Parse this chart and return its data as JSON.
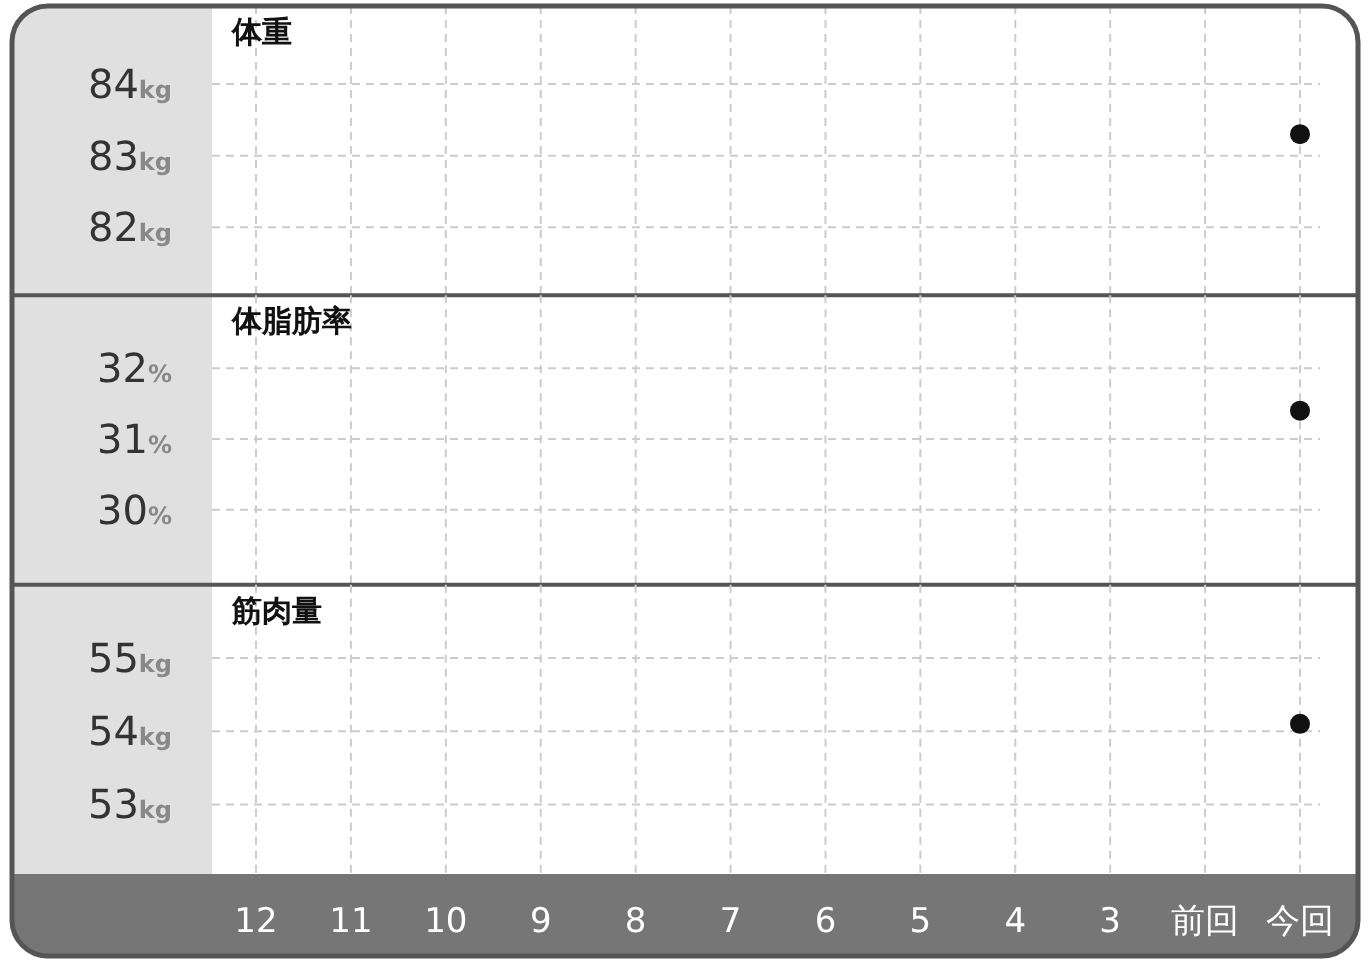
{
  "chart_data": [
    {
      "type": "scatter",
      "title": "体重",
      "categories": [
        null,
        null,
        null,
        null,
        null,
        null,
        null,
        null,
        null,
        null,
        null,
        null
      ],
      "values": [
        null,
        null,
        null,
        null,
        null,
        null,
        null,
        null,
        null,
        null,
        null,
        83.3
      ],
      "color": "#111111",
      "marker": "circle",
      "ylim": [
        81.05,
        85.09
      ],
      "yticks": [
        {
          "value": 82,
          "label": "82kg"
        },
        {
          "value": 83,
          "label": "83kg"
        },
        {
          "value": 84,
          "label": "84kg"
        }
      ],
      "grid": true,
      "tick_labels": "y"
    },
    {
      "type": "scatter",
      "title": "体脂肪率",
      "categories": [
        null,
        null,
        null,
        null,
        null,
        null,
        null,
        null,
        null,
        null,
        null,
        null
      ],
      "values": [
        null,
        null,
        null,
        null,
        null,
        null,
        null,
        null,
        null,
        null,
        null,
        31.4
      ],
      "color": "#111111",
      "marker": "circle",
      "ylim": [
        28.94,
        33.03
      ],
      "yticks": [
        {
          "value": 30,
          "label": "30%"
        },
        {
          "value": 31,
          "label": "31%"
        },
        {
          "value": 32,
          "label": "32%"
        }
      ],
      "grid": true,
      "tick_labels": "y"
    },
    {
      "type": "scatter",
      "title": "筋肉量",
      "categories": [
        "12",
        "11",
        "10",
        "9",
        "8",
        "7",
        "6",
        "5",
        "4",
        "3",
        "前回",
        "今回"
      ],
      "values": [
        null,
        null,
        null,
        null,
        null,
        null,
        null,
        null,
        null,
        null,
        null,
        54.1
      ],
      "color": "#111111",
      "marker": "circle",
      "ylim": [
        52.05,
        56.0
      ],
      "yticks": [
        {
          "value": 53,
          "label": "53kg"
        },
        {
          "value": 54,
          "label": "54kg"
        },
        {
          "value": 55,
          "label": "55kg"
        }
      ],
      "grid": true
    }
  ]
}
